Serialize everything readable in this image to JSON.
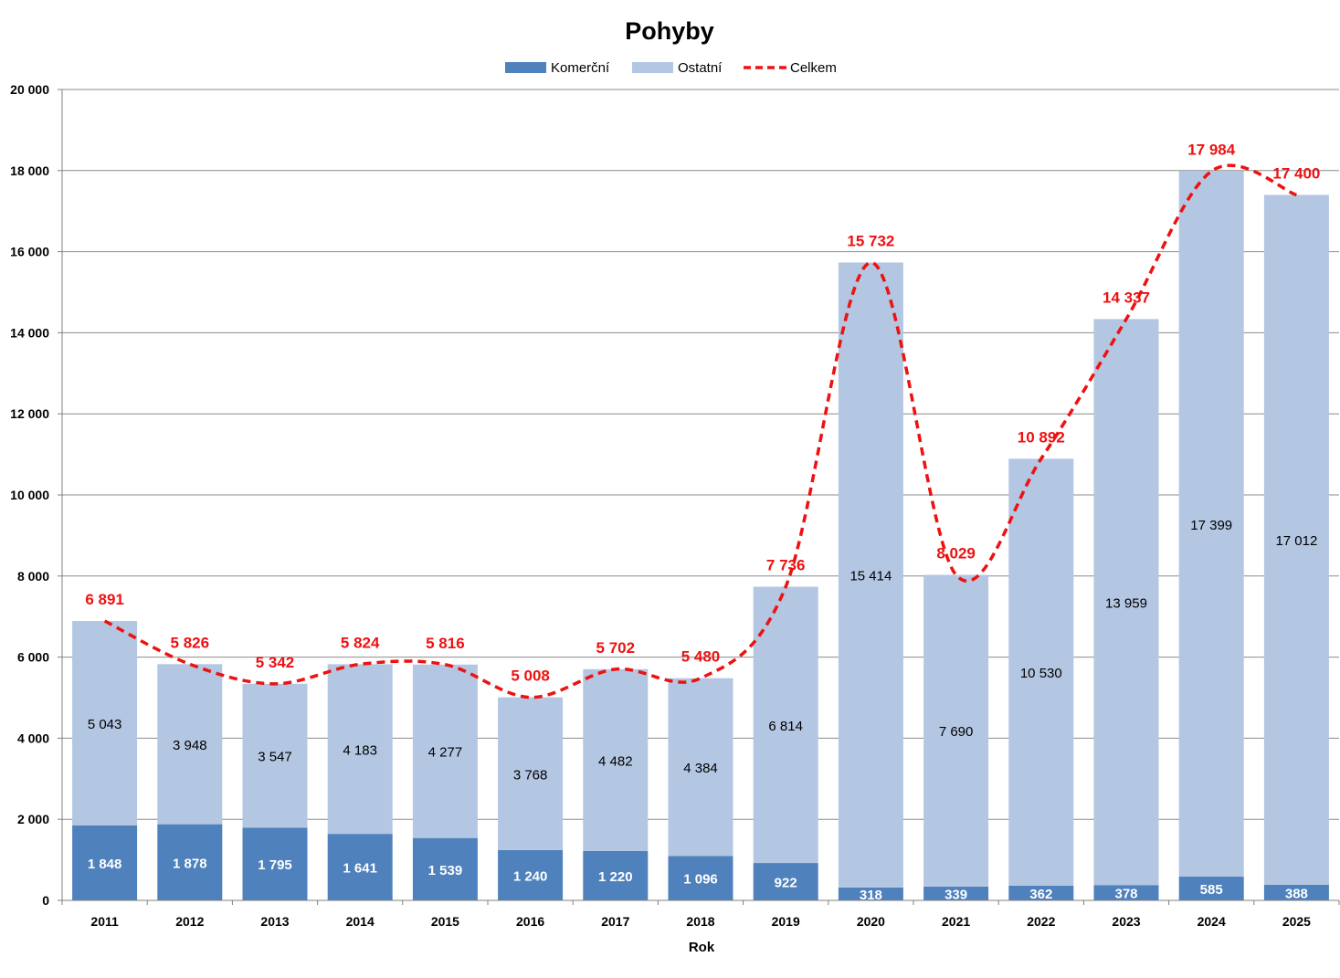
{
  "chart_data": {
    "type": "bar",
    "title": "Pohyby",
    "xlabel": "Rok",
    "ylabel": "",
    "ylim": [
      0,
      20000
    ],
    "yticks": [
      "0",
      "2 000",
      "4 000",
      "6 000",
      "8 000",
      "10 000",
      "12 000",
      "14 000",
      "16 000",
      "18 000",
      "20 000"
    ],
    "grid": true,
    "legend_position": "top",
    "categories": [
      "2011",
      "2012",
      "2013",
      "2014",
      "2015",
      "2016",
      "2017",
      "2018",
      "2019",
      "2020",
      "2021",
      "2022",
      "2023",
      "2024",
      "2025"
    ],
    "series": [
      {
        "name": "Komerční",
        "kind": "stacked-bar",
        "color": "#4f81bd",
        "values": [
          1848,
          1878,
          1795,
          1641,
          1539,
          1240,
          1220,
          1096,
          922,
          318,
          339,
          362,
          378,
          585,
          388
        ],
        "labels": [
          "1 848",
          "1 878",
          "1 795",
          "1 641",
          "1 539",
          "1 240",
          "1 220",
          "1 096",
          "922",
          "318",
          "339",
          "362",
          "378",
          "585",
          "388"
        ]
      },
      {
        "name": "Ostatní",
        "kind": "stacked-bar",
        "color": "#b3c6e2",
        "values": [
          5043,
          3948,
          3547,
          4183,
          4277,
          3768,
          4482,
          4384,
          6814,
          15414,
          7690,
          10530,
          13959,
          17399,
          17012
        ],
        "labels": [
          "5 043",
          "3 948",
          "3 547",
          "4 183",
          "4 277",
          "3 768",
          "4 482",
          "4 384",
          "6 814",
          "15 414",
          "7 690",
          "10 530",
          "13 959",
          "17 399",
          "17 012"
        ]
      },
      {
        "name": "Celkem",
        "kind": "line",
        "style": "dashed-smooth",
        "color": "#ee1111",
        "values": [
          6891,
          5826,
          5342,
          5824,
          5816,
          5008,
          5702,
          5480,
          7736,
          15732,
          8029,
          10892,
          14337,
          17984,
          17400
        ],
        "labels": [
          "6 891",
          "5 826",
          "5 342",
          "5 824",
          "5 816",
          "5 008",
          "5 702",
          "5 480",
          "7 736",
          "15 732",
          "8 029",
          "10 892",
          "14 337",
          "17 984",
          "17 400"
        ]
      }
    ]
  }
}
